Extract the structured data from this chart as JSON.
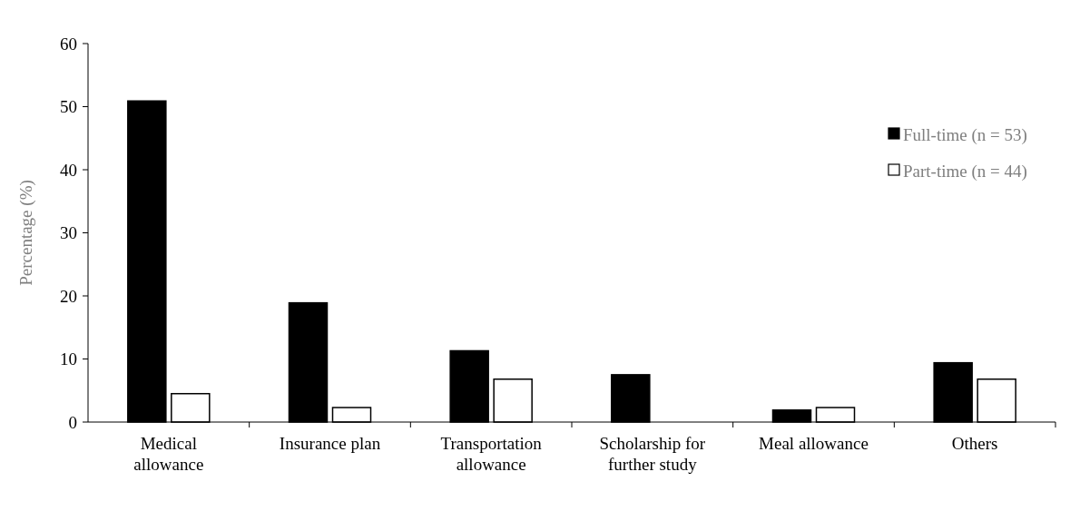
{
  "chart_data": {
    "type": "bar",
    "ylabel": "Percentage (%)",
    "categories": [
      "Medical allowance",
      "Insurance plan",
      "Transportation allowance",
      "Scholarship for further study",
      "Meal allowance",
      "Others"
    ],
    "series": [
      {
        "name": "Full-time (n = 53)",
        "color": "#000000",
        "values": [
          50.9,
          18.9,
          11.3,
          7.5,
          1.9,
          9.4
        ]
      },
      {
        "name": "Part-time (n = 44)",
        "color": "#ffffff",
        "values": [
          4.5,
          2.3,
          6.8,
          0,
          2.3,
          6.8
        ]
      }
    ],
    "ylim": [
      0,
      60
    ],
    "yticks": [
      0,
      10,
      20,
      30,
      40,
      50,
      60
    ],
    "grid": false,
    "legend": "top right"
  }
}
